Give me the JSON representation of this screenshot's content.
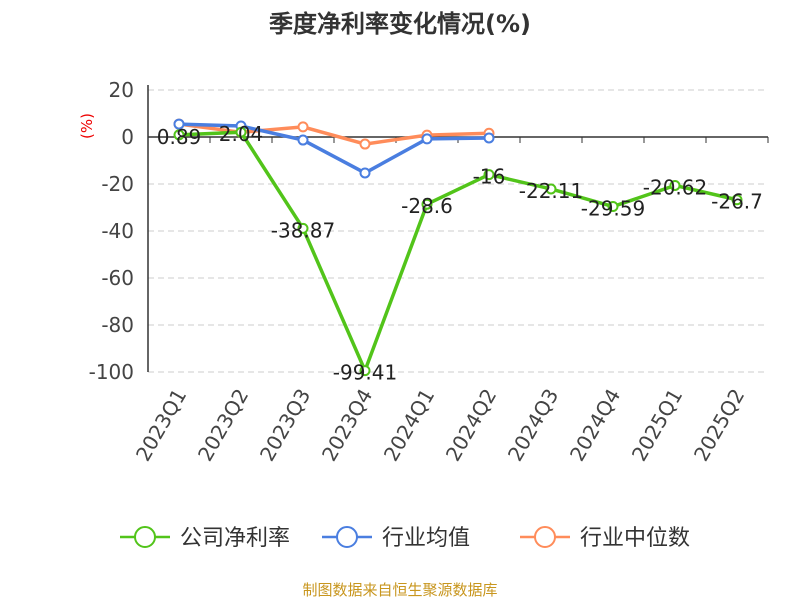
{
  "chart_data": {
    "type": "line",
    "title": "季度净利率变化情况(%)",
    "ylabel": "(%)",
    "ylim": [
      -100,
      20
    ],
    "yticks": [
      20,
      0,
      -20,
      -40,
      -60,
      -80,
      -100
    ],
    "grid": true,
    "legend_position": "bottom",
    "categories": [
      "2023Q1",
      "2023Q2",
      "2023Q3",
      "2023Q4",
      "2024Q1",
      "2024Q2",
      "2024Q3",
      "2024Q4",
      "2025Q1",
      "2025Q2"
    ],
    "series": [
      {
        "name": "公司净利率",
        "color": "#52c41a",
        "values": [
          0.89,
          2.04,
          -38.87,
          -99.41,
          -28.6,
          -16,
          -22.11,
          -29.59,
          -20.62,
          -26.7
        ],
        "labels": [
          "0.89",
          "2.04",
          "-38.87",
          "-99.41",
          "-28.6",
          "-16",
          "-22.11",
          "-29.59",
          "-20.62",
          "-26.7"
        ]
      },
      {
        "name": "行业均值",
        "color": "#4a7ee0",
        "values": [
          5.5,
          4.7,
          -1.3,
          -15.3,
          -0.8,
          -0.4,
          null,
          null,
          null,
          null
        ]
      },
      {
        "name": "行业中位数",
        "color": "#ff8c5a",
        "values": [
          5.5,
          2.0,
          4.3,
          -3.0,
          0.8,
          1.6,
          null,
          null,
          null,
          null
        ]
      }
    ]
  },
  "footer": {
    "source": "制图数据来自恒生聚源数据库",
    "color": "#c8961e"
  }
}
